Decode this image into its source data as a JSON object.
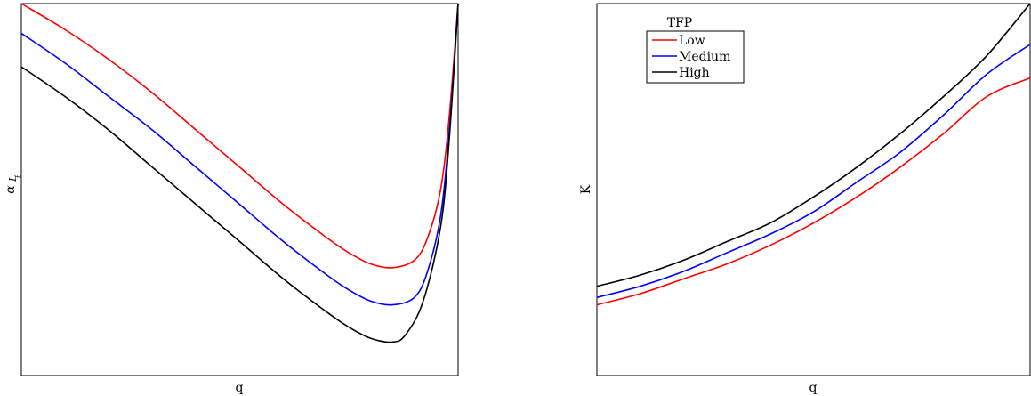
{
  "chart_data": [
    {
      "type": "line",
      "xlabel": "q",
      "ylabel_main": "α",
      "ylabel_sub": "L",
      "ylabel_subsub": "t",
      "grid": false,
      "legend": false,
      "xlim": [
        0,
        1
      ],
      "ylim": [
        0,
        1
      ],
      "series": [
        {
          "color": "#ff0000",
          "x": [
            0.0,
            0.1,
            0.2,
            0.3,
            0.4,
            0.5,
            0.6,
            0.7,
            0.75,
            0.8,
            0.85,
            0.9,
            0.93,
            0.96,
            0.98,
            1.0
          ],
          "y": [
            1.0,
            0.93,
            0.85,
            0.76,
            0.66,
            0.56,
            0.46,
            0.37,
            0.33,
            0.3,
            0.29,
            0.31,
            0.37,
            0.5,
            0.7,
            1.0
          ]
        },
        {
          "color": "#0000ff",
          "x": [
            0.0,
            0.1,
            0.2,
            0.3,
            0.4,
            0.5,
            0.6,
            0.7,
            0.75,
            0.8,
            0.85,
            0.9,
            0.93,
            0.96,
            0.98,
            1.0
          ],
          "y": [
            0.92,
            0.84,
            0.75,
            0.66,
            0.56,
            0.46,
            0.36,
            0.27,
            0.23,
            0.2,
            0.19,
            0.21,
            0.28,
            0.43,
            0.66,
            1.0
          ]
        },
        {
          "color": "#000000",
          "x": [
            0.0,
            0.1,
            0.2,
            0.3,
            0.4,
            0.5,
            0.6,
            0.7,
            0.75,
            0.8,
            0.85,
            0.88,
            0.92,
            0.96,
            0.98,
            1.0
          ],
          "y": [
            0.83,
            0.75,
            0.66,
            0.56,
            0.46,
            0.36,
            0.26,
            0.17,
            0.13,
            0.1,
            0.09,
            0.11,
            0.2,
            0.4,
            0.64,
            1.0
          ]
        }
      ]
    },
    {
      "type": "line",
      "xlabel": "q",
      "ylabel": "K",
      "grid": false,
      "legend_title": "TFP",
      "legend_position": "top-left",
      "xlim": [
        0,
        1
      ],
      "ylim": [
        0,
        1
      ],
      "series": [
        {
          "name": "Low",
          "color": "#ff0000",
          "x": [
            0.0,
            0.1,
            0.2,
            0.3,
            0.4,
            0.5,
            0.6,
            0.7,
            0.8,
            0.9,
            1.0
          ],
          "y": [
            0.19,
            0.22,
            0.26,
            0.3,
            0.35,
            0.41,
            0.48,
            0.56,
            0.65,
            0.75,
            0.8
          ]
        },
        {
          "name": "Medium",
          "color": "#0000ff",
          "x": [
            0.0,
            0.1,
            0.2,
            0.3,
            0.4,
            0.5,
            0.6,
            0.7,
            0.8,
            0.9,
            1.0
          ],
          "y": [
            0.21,
            0.24,
            0.28,
            0.33,
            0.38,
            0.44,
            0.52,
            0.6,
            0.7,
            0.81,
            0.89
          ]
        },
        {
          "name": "High",
          "color": "#000000",
          "x": [
            0.0,
            0.1,
            0.2,
            0.3,
            0.4,
            0.5,
            0.6,
            0.7,
            0.8,
            0.9,
            1.0
          ],
          "y": [
            0.24,
            0.27,
            0.31,
            0.36,
            0.41,
            0.48,
            0.56,
            0.65,
            0.75,
            0.86,
            1.0
          ]
        }
      ]
    }
  ]
}
